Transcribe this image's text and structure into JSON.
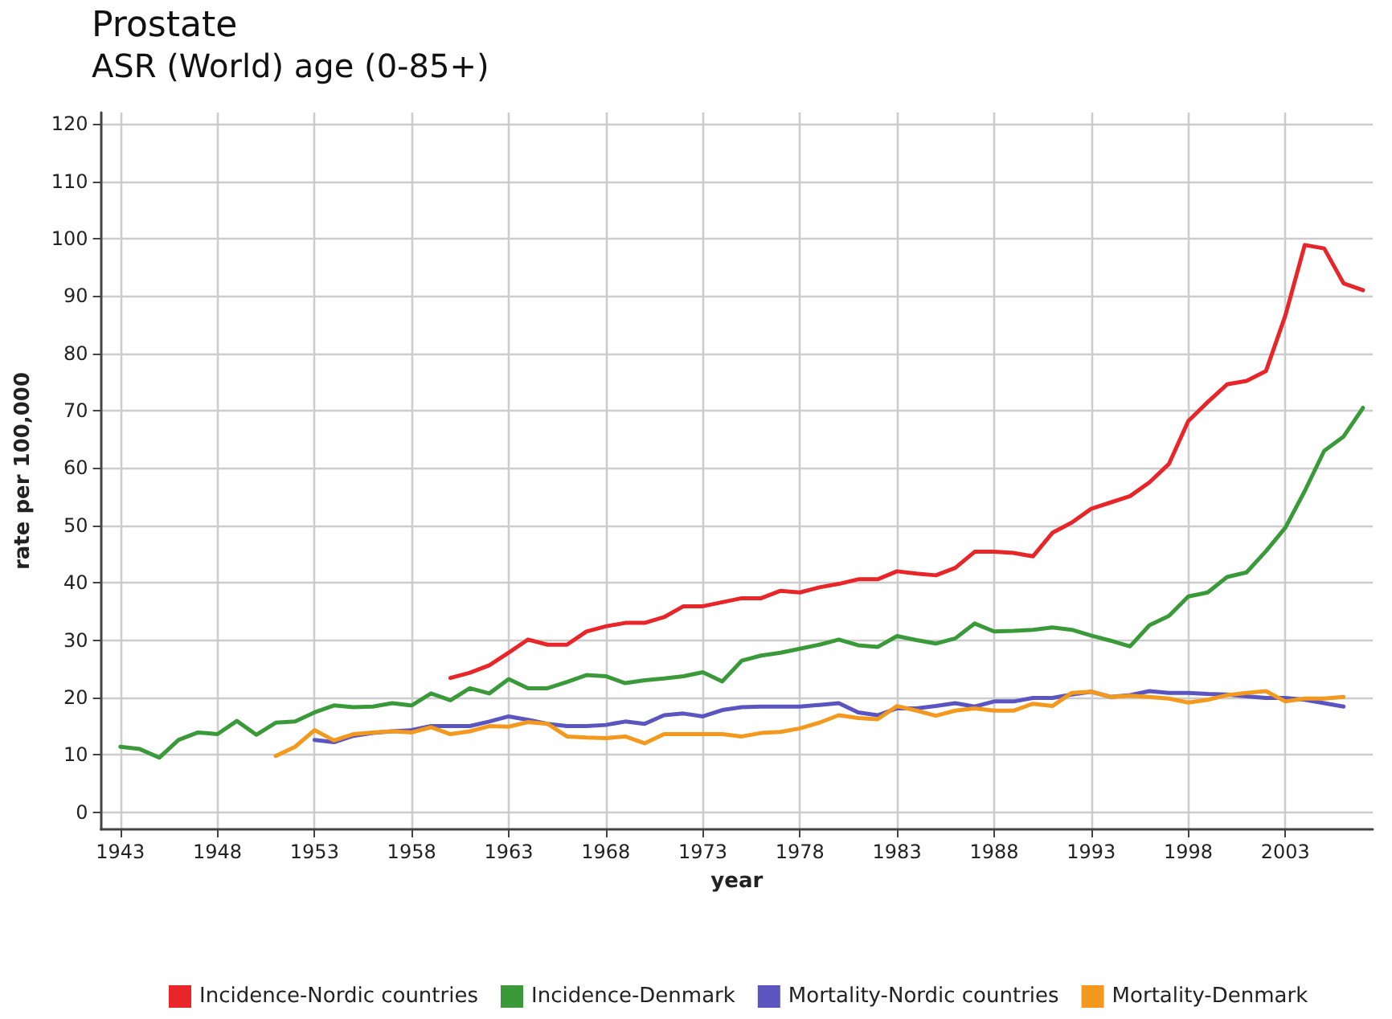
{
  "chart_data": {
    "type": "line",
    "title": "Prostate",
    "subtitle": "ASR (World) age (0-85+)",
    "xlabel": "year",
    "ylabel": "rate per 100,000",
    "xlim": [
      1942,
      2007.5
    ],
    "xticks": [
      1943,
      1948,
      1953,
      1958,
      1963,
      1968,
      1973,
      1978,
      1983,
      1988,
      1993,
      1998,
      2003
    ],
    "ylim": [
      -3,
      122
    ],
    "yticks": [
      0,
      10,
      20,
      30,
      40,
      50,
      60,
      70,
      80,
      90,
      100,
      110,
      120
    ],
    "grid": true,
    "legend": "bottom",
    "marker": "none",
    "line_style": "solid",
    "series": [
      {
        "name": "Incidence-Nordic countries",
        "color": "#e8262a",
        "x": [
          1960,
          1961,
          1962,
          1963,
          1964,
          1965,
          1966,
          1967,
          1968,
          1969,
          1970,
          1971,
          1972,
          1973,
          1974,
          1975,
          1976,
          1977,
          1978,
          1979,
          1980,
          1981,
          1982,
          1983,
          1984,
          1985,
          1986,
          1987,
          1988,
          1989,
          1990,
          1991,
          1992,
          1993,
          1994,
          1995,
          1996,
          1997,
          1998,
          1999,
          2000,
          2001,
          2002,
          2003,
          2004,
          2005,
          2006,
          2007
        ],
        "values": [
          23.4,
          24.3,
          25.6,
          27.8,
          30.1,
          29.2,
          29.2,
          31.5,
          32.4,
          33.0,
          33.0,
          34.0,
          35.9,
          35.9,
          36.6,
          37.3,
          37.3,
          38.6,
          38.3,
          39.2,
          39.8,
          40.6,
          40.6,
          42.0,
          41.6,
          41.3,
          42.6,
          45.4,
          45.4,
          45.2,
          44.6,
          48.7,
          50.5,
          52.9,
          54.0,
          55.1,
          57.5,
          60.7,
          68.2,
          71.5,
          74.6,
          75.2,
          76.9,
          86.6,
          98.9,
          98.3,
          92.2,
          91.0
        ]
      },
      {
        "name": "Incidence-Denmark",
        "color": "#3a9a3a",
        "x": [
          1943,
          1944,
          1945,
          1946,
          1947,
          1948,
          1949,
          1950,
          1951,
          1952,
          1953,
          1954,
          1955,
          1956,
          1957,
          1958,
          1959,
          1960,
          1961,
          1962,
          1963,
          1964,
          1965,
          1966,
          1967,
          1968,
          1969,
          1970,
          1971,
          1972,
          1973,
          1974,
          1975,
          1976,
          1977,
          1978,
          1979,
          1980,
          1981,
          1982,
          1983,
          1984,
          1985,
          1986,
          1987,
          1988,
          1989,
          1990,
          1991,
          1992,
          1993,
          1994,
          1995,
          1996,
          1997,
          1998,
          1999,
          2000,
          2001,
          2002,
          2003,
          2004,
          2005,
          2006,
          2007
        ],
        "values": [
          11.4,
          11.0,
          9.5,
          12.6,
          13.9,
          13.6,
          15.9,
          13.5,
          15.6,
          15.8,
          17.4,
          18.6,
          18.3,
          18.4,
          19.0,
          18.6,
          20.7,
          19.5,
          21.6,
          20.7,
          23.2,
          21.6,
          21.6,
          22.7,
          23.9,
          23.7,
          22.5,
          23.0,
          23.3,
          23.7,
          24.4,
          22.8,
          26.4,
          27.3,
          27.8,
          28.5,
          29.2,
          30.1,
          29.1,
          28.8,
          30.7,
          30.0,
          29.4,
          30.3,
          32.9,
          31.5,
          31.6,
          31.8,
          32.2,
          31.8,
          30.8,
          29.9,
          28.9,
          32.6,
          34.2,
          37.6,
          38.3,
          41.0,
          41.8,
          45.5,
          49.6,
          56.0,
          63.0,
          65.5,
          70.5
        ]
      },
      {
        "name": "Mortality-Nordic countries",
        "color": "#5b55c0",
        "x": [
          1953,
          1954,
          1955,
          1956,
          1957,
          1958,
          1959,
          1960,
          1961,
          1962,
          1963,
          1964,
          1965,
          1966,
          1967,
          1968,
          1969,
          1970,
          1971,
          1972,
          1973,
          1974,
          1975,
          1976,
          1977,
          1978,
          1979,
          1980,
          1981,
          1982,
          1983,
          1984,
          1985,
          1986,
          1987,
          1988,
          1989,
          1990,
          1991,
          1992,
          1993,
          1994,
          1995,
          1996,
          1997,
          1998,
          1999,
          2000,
          2001,
          2002,
          2003,
          2004,
          2005,
          2006
        ],
        "values": [
          12.6,
          12.2,
          13.3,
          13.8,
          14.1,
          14.3,
          15.0,
          15.0,
          15.0,
          15.8,
          16.7,
          16.1,
          15.4,
          15.0,
          15.0,
          15.2,
          15.8,
          15.4,
          16.9,
          17.2,
          16.7,
          17.8,
          18.3,
          18.4,
          18.4,
          18.4,
          18.7,
          19.0,
          17.4,
          16.9,
          18.1,
          18.1,
          18.5,
          19.0,
          18.4,
          19.3,
          19.3,
          19.9,
          19.9,
          20.5,
          21.0,
          20.1,
          20.4,
          21.1,
          20.8,
          20.8,
          20.6,
          20.5,
          20.2,
          19.9,
          19.9,
          19.6,
          19.0,
          18.4
        ]
      },
      {
        "name": "Mortality-Denmark",
        "color": "#f39a1e",
        "x": [
          1951,
          1952,
          1953,
          1954,
          1955,
          1956,
          1957,
          1958,
          1959,
          1960,
          1961,
          1962,
          1963,
          1964,
          1965,
          1966,
          1967,
          1968,
          1969,
          1970,
          1971,
          1972,
          1973,
          1974,
          1975,
          1976,
          1977,
          1978,
          1979,
          1980,
          1981,
          1982,
          1983,
          1984,
          1985,
          1986,
          1987,
          1988,
          1989,
          1990,
          1991,
          1992,
          1993,
          1994,
          1995,
          1996,
          1997,
          1998,
          1999,
          2000,
          2001,
          2002,
          2003,
          2004,
          2005,
          2006
        ],
        "values": [
          9.8,
          11.4,
          14.3,
          12.5,
          13.6,
          13.9,
          14.1,
          13.9,
          14.8,
          13.6,
          14.1,
          15.0,
          14.9,
          15.7,
          15.4,
          13.2,
          13.0,
          12.9,
          13.2,
          12.0,
          13.6,
          13.6,
          13.6,
          13.6,
          13.2,
          13.8,
          14.0,
          14.6,
          15.6,
          16.9,
          16.4,
          16.2,
          18.5,
          17.7,
          16.8,
          17.7,
          18.1,
          17.7,
          17.7,
          18.9,
          18.5,
          20.8,
          21.0,
          20.1,
          20.3,
          20.1,
          19.8,
          19.1,
          19.6,
          20.4,
          20.8,
          21.1,
          19.3,
          19.8,
          19.8,
          20.1
        ]
      }
    ]
  }
}
